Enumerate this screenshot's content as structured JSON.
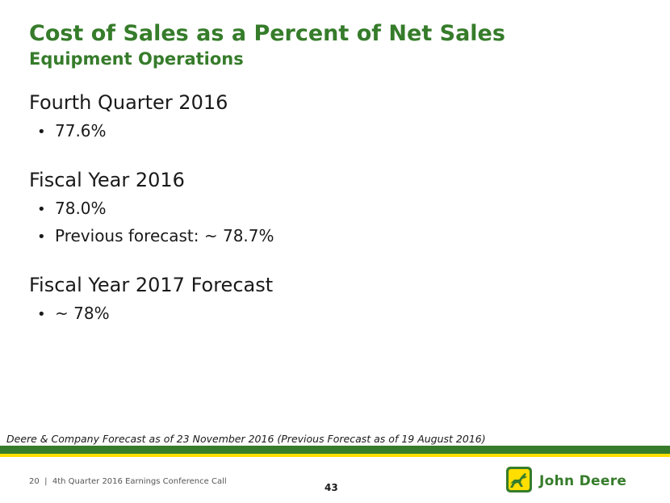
{
  "slide": {
    "title": "Cost of Sales as a Percent of Net Sales",
    "subtitle": "Equipment Operations"
  },
  "sections": [
    {
      "heading": "Fourth Quarter 2016",
      "bullets": [
        "77.6%"
      ]
    },
    {
      "heading": "Fiscal Year 2016",
      "bullets": [
        "78.0%",
        "Previous forecast: ~ 78.7%"
      ]
    },
    {
      "heading": "Fiscal Year 2017 Forecast",
      "bullets": [
        "~ 78%"
      ]
    }
  ],
  "footnote": "Deere & Company Forecast as of 23 November 2016 (Previous Forecast as of 19 August 2016)",
  "footer": {
    "slide_number": "20",
    "separator": "|",
    "event": "4th Quarter 2016 Earnings Conference Call",
    "page_number": "43"
  },
  "logo": {
    "icon": "leaping-deer-icon",
    "text": "John Deere"
  },
  "colors": {
    "brand_green": "#367c2b",
    "brand_yellow": "#ffde00"
  }
}
